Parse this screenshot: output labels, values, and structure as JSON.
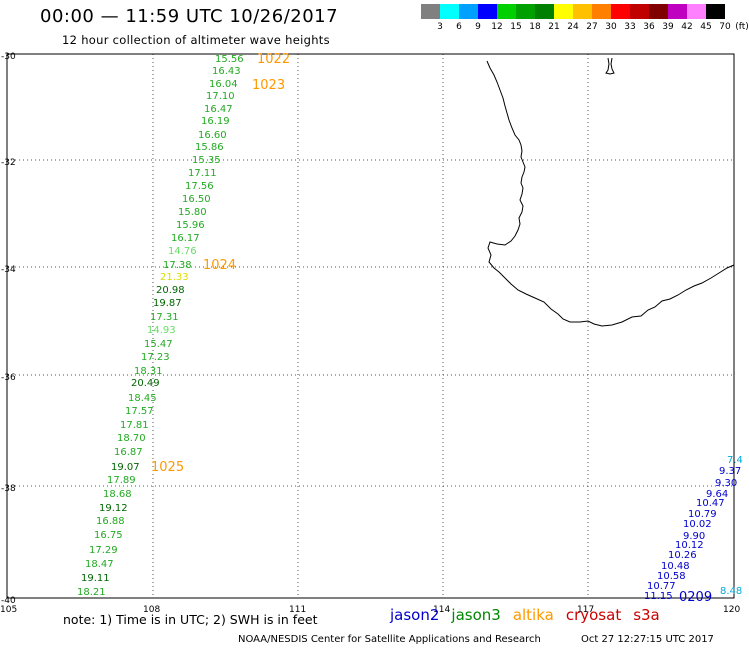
{
  "header": {
    "title": "00:00 — 11:59 UTC 10/26/2017",
    "subtitle": "12 hour collection of altimeter wave heights"
  },
  "color_scale": {
    "unit": "(ft)",
    "colors": [
      "#808080",
      "#00ffff",
      "#00a0ff",
      "#0000ff",
      "#00d000",
      "#00a000",
      "#008000",
      "#ffff00",
      "#ffc000",
      "#ff8000",
      "#ff0000",
      "#c00000",
      "#800000",
      "#c000c0",
      "#ff80ff",
      "#000000"
    ],
    "ticks": [
      "3",
      "6",
      "9",
      "12",
      "15",
      "18",
      "21",
      "24",
      "27",
      "30",
      "33",
      "36",
      "39",
      "42",
      "45",
      "70"
    ]
  },
  "axes": {
    "lon_ticks": [
      "105",
      "108",
      "111",
      "114",
      "117",
      "120"
    ],
    "lat_ticks": [
      "-30",
      "-32",
      "-34",
      "-36",
      "-38",
      "-40"
    ]
  },
  "observations": [
    {
      "text": "15.56",
      "color": "#22aa22"
    },
    {
      "text": "16.43",
      "color": "#22aa22"
    },
    {
      "text": "16.04",
      "color": "#22aa22"
    },
    {
      "text": "17.10",
      "color": "#22aa22"
    },
    {
      "text": "16.47",
      "color": "#22aa22"
    },
    {
      "text": "16.19",
      "color": "#22aa22"
    },
    {
      "text": "16.60",
      "color": "#22aa22"
    },
    {
      "text": "15.86",
      "color": "#22aa22"
    },
    {
      "text": "15.35",
      "color": "#22aa22"
    },
    {
      "text": "17.11",
      "color": "#22aa22"
    },
    {
      "text": "17.56",
      "color": "#22aa22"
    },
    {
      "text": "16.50",
      "color": "#22aa22"
    },
    {
      "text": "15.80",
      "color": "#22aa22"
    },
    {
      "text": "15.96",
      "color": "#22aa22"
    },
    {
      "text": "16.17",
      "color": "#22aa22"
    },
    {
      "text": "14.76",
      "color": "#66dd66"
    },
    {
      "text": "17.38",
      "color": "#22aa22"
    },
    {
      "text": "21.33",
      "color": "#dddd00"
    },
    {
      "text": "20.98",
      "color": "#006600"
    },
    {
      "text": "19.87",
      "color": "#006600"
    },
    {
      "text": "17.31",
      "color": "#22aa22"
    },
    {
      "text": "14.93",
      "color": "#66dd66"
    },
    {
      "text": "15.47",
      "color": "#22aa22"
    },
    {
      "text": "17.23",
      "color": "#22aa22"
    },
    {
      "text": "18.31",
      "color": "#22aa22"
    },
    {
      "text": "20.49",
      "color": "#006600"
    },
    {
      "text": "18.45",
      "color": "#22aa22"
    },
    {
      "text": "17.57",
      "color": "#22aa22"
    },
    {
      "text": "17.81",
      "color": "#22aa22"
    },
    {
      "text": "18.70",
      "color": "#22aa22"
    },
    {
      "text": "16.87",
      "color": "#22aa22"
    },
    {
      "text": "19.07",
      "color": "#006600"
    },
    {
      "text": "17.89",
      "color": "#22aa22"
    },
    {
      "text": "18.68",
      "color": "#22aa22"
    },
    {
      "text": "19.12",
      "color": "#006600"
    },
    {
      "text": "16.88",
      "color": "#22aa22"
    },
    {
      "text": "16.75",
      "color": "#22aa22"
    },
    {
      "text": "17.29",
      "color": "#22aa22"
    },
    {
      "text": "18.47",
      "color": "#22aa22"
    },
    {
      "text": "19.11",
      "color": "#006600"
    },
    {
      "text": "18.21",
      "color": "#22aa22"
    },
    {
      "text": "9.37",
      "color": "#0000cc"
    },
    {
      "text": "9.30",
      "color": "#0000cc"
    },
    {
      "text": "9.64",
      "color": "#0000cc"
    },
    {
      "text": "10.47",
      "color": "#0000cc"
    },
    {
      "text": "10.79",
      "color": "#0000cc"
    },
    {
      "text": "10.02",
      "color": "#0000cc"
    },
    {
      "text": "9.90",
      "color": "#0000cc"
    },
    {
      "text": "10.12",
      "color": "#0000cc"
    },
    {
      "text": "10.26",
      "color": "#0000cc"
    },
    {
      "text": "10.48",
      "color": "#0000cc"
    },
    {
      "text": "10.58",
      "color": "#0000cc"
    },
    {
      "text": "10.77",
      "color": "#0000cc"
    },
    {
      "text": "11.15",
      "color": "#0000cc"
    },
    {
      "text": "7.4",
      "color": "#00aadd"
    },
    {
      "text": "8.48",
      "color": "#00aadd"
    }
  ],
  "cycle_labels": [
    {
      "text": "1022",
      "color": "#ff9900"
    },
    {
      "text": "1023",
      "color": "#ff9900"
    },
    {
      "text": "1024",
      "color": "#ff9900"
    },
    {
      "text": "1025",
      "color": "#ff9900"
    },
    {
      "text": "0209",
      "color": "#0000cc"
    }
  ],
  "footer": {
    "note": "note: 1) Time is in UTC; 2) SWH is in feet",
    "satellites": [
      {
        "name": "jason2",
        "color": "#0000cc"
      },
      {
        "name": "jason3",
        "color": "#008800"
      },
      {
        "name": "altika",
        "color": "#ff9900"
      },
      {
        "name": "cryosat",
        "color": "#cc0000"
      },
      {
        "name": "s3a",
        "color": "#cc0000"
      }
    ],
    "credit": "NOAA/NESDIS Center for Satellite Applications and Research",
    "timestamp": "Oct 27 12:27:15 UTC 2017"
  }
}
